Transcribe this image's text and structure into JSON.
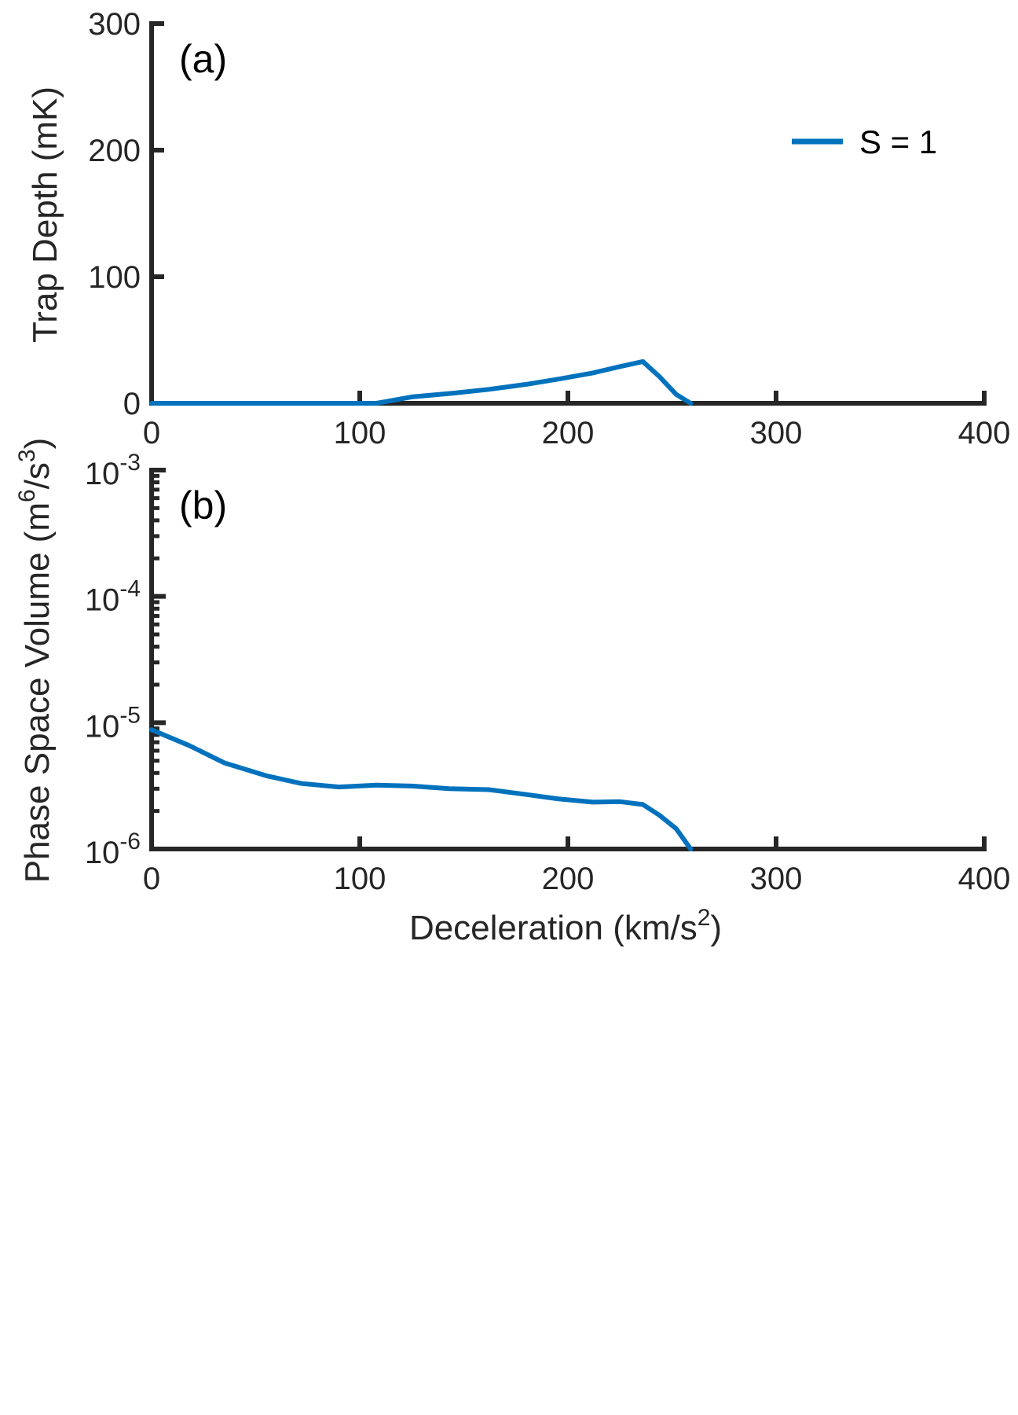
{
  "chart_data": [
    {
      "type": "line",
      "panel_label": "(a)",
      "xlabel": "",
      "ylabel": "Trap Depth (mK)",
      "xlim": [
        0,
        400
      ],
      "ylim": [
        0,
        300
      ],
      "xticks": [
        "0",
        "100",
        "200",
        "300",
        "400"
      ],
      "yticks": [
        "0",
        "100",
        "200",
        "300"
      ],
      "legend": {
        "placement": "top-right"
      },
      "series": [
        {
          "name": "S = 1",
          "color": "#0072bd",
          "x": [
            0,
            50,
            100,
            108,
            125,
            145,
            162,
            180,
            195,
            212,
            225,
            236,
            244,
            252,
            259
          ],
          "y": [
            0,
            0,
            0,
            0,
            5,
            8,
            11,
            15,
            19,
            24,
            29,
            33,
            21,
            7,
            0
          ]
        }
      ]
    },
    {
      "type": "line",
      "panel_label": "(b)",
      "xlabel_main": "Deceleration (km/s",
      "xlabel_sup": "2",
      "xlabel_end": ")",
      "ylabel_main": "Phase Space Volume (m",
      "ylabel_sup1": "6",
      "ylabel_mid": "/s",
      "ylabel_sup2": "3",
      "ylabel_end": ")",
      "xlim": [
        0,
        400
      ],
      "ylim": [
        1e-06,
        0.001
      ],
      "yscale": "log",
      "xticks": [
        "0",
        "100",
        "200",
        "300",
        "400"
      ],
      "yticks": [
        {
          "base": "10",
          "exp": "-6"
        },
        {
          "base": "10",
          "exp": "-5"
        },
        {
          "base": "10",
          "exp": "-4"
        },
        {
          "base": "10",
          "exp": "-3"
        }
      ],
      "series": [
        {
          "name": "S = 1",
          "color": "#0072bd",
          "x": [
            0,
            18,
            35,
            55,
            72,
            90,
            108,
            125,
            143,
            162,
            180,
            195,
            212,
            225,
            236,
            244,
            252,
            259
          ],
          "y": [
            8.8e-06,
            6.6e-06,
            4.8e-06,
            3.8e-06,
            3.3e-06,
            3.1e-06,
            3.2e-06,
            3.15e-06,
            3e-06,
            2.95e-06,
            2.7e-06,
            2.5e-06,
            2.35e-06,
            2.37e-06,
            2.25e-06,
            1.85e-06,
            1.45e-06,
            1e-06
          ]
        }
      ]
    }
  ]
}
